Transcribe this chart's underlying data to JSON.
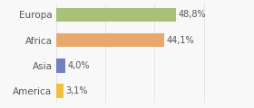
{
  "categories": [
    "America",
    "Asia",
    "Africa",
    "Europa"
  ],
  "values": [
    3.1,
    4.0,
    44.1,
    48.8
  ],
  "labels": [
    "3,1%",
    "4,0%",
    "44,1%",
    "48,8%"
  ],
  "bar_colors": [
    "#f0c040",
    "#7080c0",
    "#e8a96e",
    "#a8c078"
  ],
  "background_color": "#f8f8f8",
  "xlim": [
    0,
    68
  ],
  "bar_height": 0.55,
  "label_fontsize": 7,
  "tick_fontsize": 7.5,
  "tick_color": "#555555",
  "label_color": "#555555",
  "grid_color": "#dddddd"
}
